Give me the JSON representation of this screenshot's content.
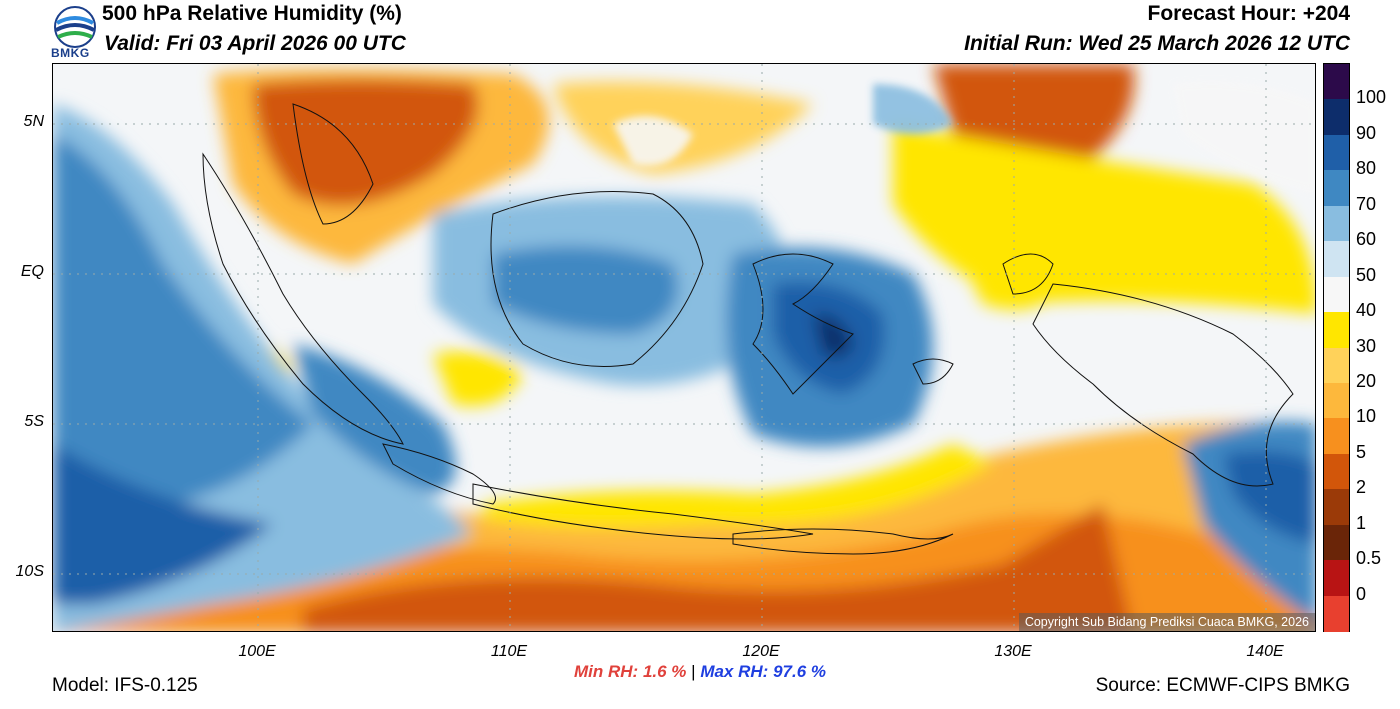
{
  "header": {
    "title": "500 hPa Relative Humidity (%)",
    "valid": "Valid: Fri 03 April 2026 00 UTC",
    "forecast_hour": "Forecast Hour: +204",
    "initial_run": "Initial Run: Wed 25 March 2026 12 UTC",
    "logo_text": "BMKG"
  },
  "map": {
    "lat_labels": [
      "5N",
      "EQ",
      "5S",
      "10S"
    ],
    "lon_labels": [
      "100E",
      "110E",
      "120E",
      "130E",
      "140E"
    ],
    "copyright": "Copyright Sub Bidang Prediksi Cuaca BMKG, 2026"
  },
  "stats": {
    "min_label": "Min RH:",
    "min_value": "1.6 %",
    "separator": "|",
    "max_label": "Max RH:",
    "max_value": "97.6 %"
  },
  "footer": {
    "model": "Model: IFS-0.125",
    "source": "Source: ECMWF-CIPS BMKG"
  },
  "colorbar": {
    "labels": [
      "100",
      "90",
      "80",
      "70",
      "60",
      "50",
      "40",
      "30",
      "20",
      "10",
      "5",
      "2",
      "1",
      "0.5",
      "0"
    ],
    "colors": [
      "#2c0a4a",
      "#0d2d6b",
      "#1f5fa8",
      "#3f88c2",
      "#89bde0",
      "#cfe4f2",
      "#f7f7f7",
      "#ffe600",
      "#ffd25a",
      "#fdb83c",
      "#f7901e",
      "#d2560a",
      "#9b3a08",
      "#6a2508",
      "#b81414",
      "#e8402f"
    ]
  }
}
